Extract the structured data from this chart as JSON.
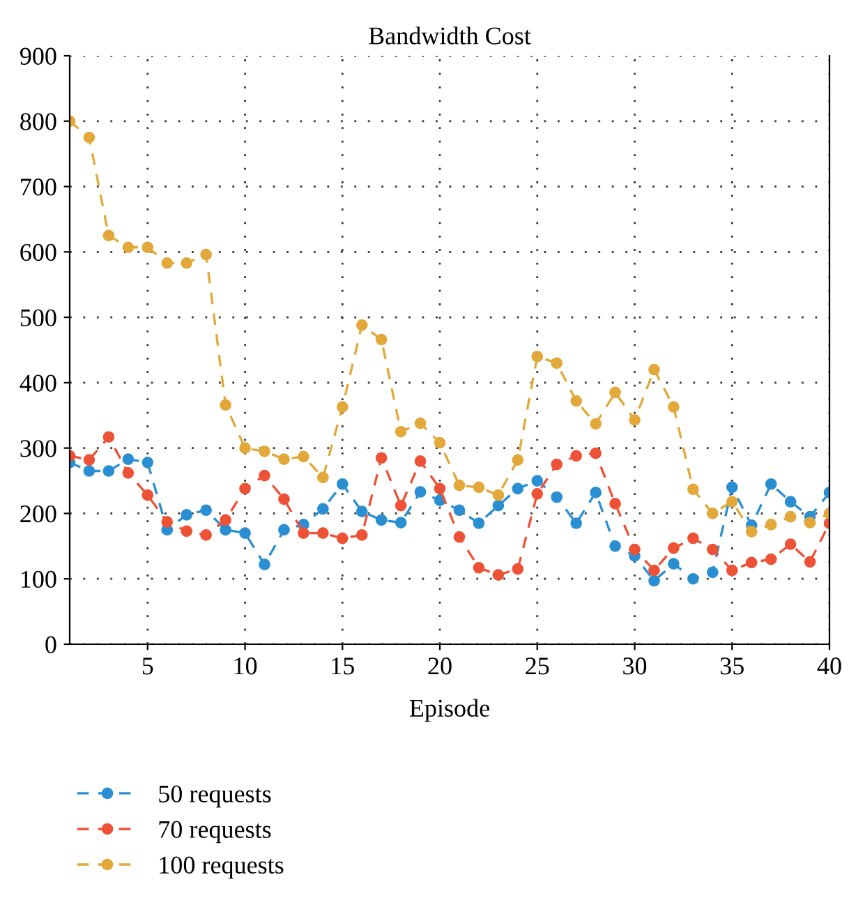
{
  "chart_data": {
    "type": "line",
    "title": "Bandwidth Cost",
    "xlabel": "Episode",
    "x": [
      1,
      2,
      3,
      4,
      5,
      6,
      7,
      8,
      9,
      10,
      11,
      12,
      13,
      14,
      15,
      16,
      17,
      18,
      19,
      20,
      21,
      22,
      23,
      24,
      25,
      26,
      27,
      28,
      29,
      30,
      31,
      32,
      33,
      34,
      35,
      36,
      37,
      38,
      39,
      40
    ],
    "series": [
      {
        "name": "50 requests",
        "color": "#2a8fd2",
        "values": [
          278,
          265,
          265,
          283,
          278,
          175,
          198,
          205,
          175,
          170,
          122,
          175,
          183,
          207,
          245,
          203,
          190,
          186,
          233,
          220,
          205,
          185,
          212,
          238,
          250,
          225,
          185,
          232,
          150,
          135,
          97,
          123,
          100,
          110,
          240,
          182,
          245,
          218,
          195,
          232
        ]
      },
      {
        "name": "70 requests",
        "color": "#ee5236",
        "values": [
          288,
          282,
          317,
          262,
          228,
          187,
          173,
          167,
          190,
          238,
          258,
          222,
          170,
          170,
          162,
          167,
          285,
          212,
          280,
          238,
          164,
          117,
          106,
          115,
          230,
          275,
          288,
          292,
          215,
          145,
          113,
          147,
          162,
          145,
          113,
          125,
          130,
          153,
          126,
          185
        ]
      },
      {
        "name": "100 requests",
        "color": "#e2a93a",
        "values": [
          800,
          775,
          625,
          607,
          607,
          583,
          583,
          596,
          366,
          300,
          295,
          283,
          287,
          255,
          363,
          488,
          466,
          325,
          338,
          308,
          243,
          240,
          228,
          282,
          440,
          430,
          372,
          337,
          385,
          343,
          420,
          363,
          237,
          200,
          218,
          172,
          183,
          195,
          186,
          200
        ]
      }
    ],
    "xlim": [
      1,
      40
    ],
    "xticks": [
      5,
      10,
      15,
      20,
      25,
      30,
      35,
      40
    ],
    "ylim": [
      0,
      900
    ],
    "yticks": [
      0,
      100,
      200,
      300,
      400,
      500,
      600,
      700,
      800,
      900
    ],
    "grid": true,
    "legend": "bottom left",
    "marker": "circle",
    "line_style": "dashed"
  }
}
